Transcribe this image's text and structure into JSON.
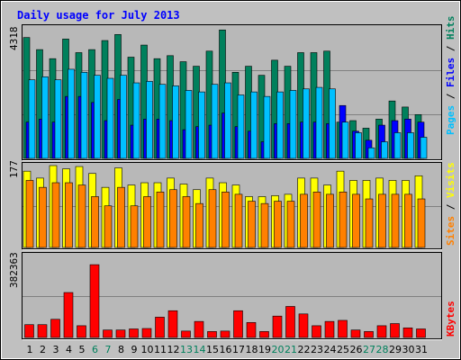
{
  "chart_data": {
    "type": "bar",
    "title": "Daily usage for July 2013",
    "days": [
      1,
      2,
      3,
      4,
      5,
      6,
      7,
      8,
      9,
      10,
      11,
      12,
      13,
      14,
      15,
      16,
      17,
      18,
      19,
      20,
      21,
      22,
      23,
      24,
      25,
      26,
      27,
      28,
      29,
      30,
      31
    ],
    "weekend_days": [
      6,
      7,
      13,
      14,
      20,
      21,
      27,
      28
    ],
    "panels": {
      "top": {
        "max_label": "4318",
        "ymax": 4318,
        "right_labels": [
          "Pages",
          "Files",
          "Hits"
        ],
        "series": [
          {
            "name": "Hits",
            "color": "#00805c",
            "values": [
              4000,
              3600,
              3300,
              3950,
              3500,
              3600,
              3900,
              4100,
              3350,
              3750,
              3300,
              3400,
              3200,
              3050,
              3550,
              4250,
              2850,
              3050,
              2750,
              3250,
              3050,
              3500,
              3500,
              3550,
              1200,
              1250,
              1000,
              1300,
              1900,
              1700,
              1450
            ]
          },
          {
            "name": "Files",
            "color": "#0000ff",
            "values": [
              1200,
              1300,
              1200,
              2050,
              2050,
              1850,
              1250,
              1950,
              1100,
              1300,
              1300,
              1250,
              950,
              1050,
              1100,
              1500,
              1050,
              900,
              550,
              1150,
              1150,
              1200,
              1200,
              1150,
              1750,
              900,
              600,
              1100,
              1250,
              1300,
              1200
            ]
          },
          {
            "name": "Pages",
            "color": "#00c0ff",
            "values": [
              2600,
              2700,
              2600,
              2950,
              2850,
              2750,
              2650,
              2750,
              2500,
              2550,
              2450,
              2400,
              2250,
              2200,
              2450,
              2500,
              2100,
              2200,
              2050,
              2200,
              2250,
              2300,
              2350,
              2300,
              1200,
              850,
              350,
              550,
              850,
              850,
              700
            ]
          }
        ]
      },
      "middle": {
        "max_label": "177",
        "ymax": 177,
        "right_labels": [
          "Sites",
          "Visits"
        ],
        "series": [
          {
            "name": "Visits",
            "color": "#ffff00",
            "values": [
              165,
              150,
              177,
              170,
              175,
              160,
              130,
              172,
              135,
              140,
              140,
              150,
              137,
              125,
              150,
              140,
              135,
              110,
              110,
              112,
              115,
              150,
              150,
              135,
              165,
              145,
              145,
              150,
              145,
              145,
              155
            ]
          },
          {
            "name": "Sites",
            "color": "#ff8000",
            "values": [
              145,
              130,
              140,
              140,
              135,
              110,
              90,
              130,
              90,
              110,
              120,
              125,
              110,
              95,
              125,
              120,
              115,
              100,
              95,
              100,
              100,
              115,
              120,
              115,
              120,
              115,
              105,
              115,
              115,
              115,
              105
            ]
          }
        ]
      },
      "bottom": {
        "max_label": "382363",
        "ymax": 382363,
        "right_labels": [
          "KBytes"
        ],
        "series": [
          {
            "name": "KBytes",
            "color": "#ff0000",
            "values": [
              60000,
              60000,
              85000,
              210000,
              55000,
              340000,
              35000,
              35000,
              40000,
              42000,
              95000,
              125000,
              30000,
              75000,
              28000,
              30000,
              125000,
              70000,
              28000,
              100000,
              145000,
              110000,
              55000,
              75000,
              80000,
              35000,
              28000,
              55000,
              65000,
              45000,
              40000
            ]
          }
        ]
      }
    }
  }
}
